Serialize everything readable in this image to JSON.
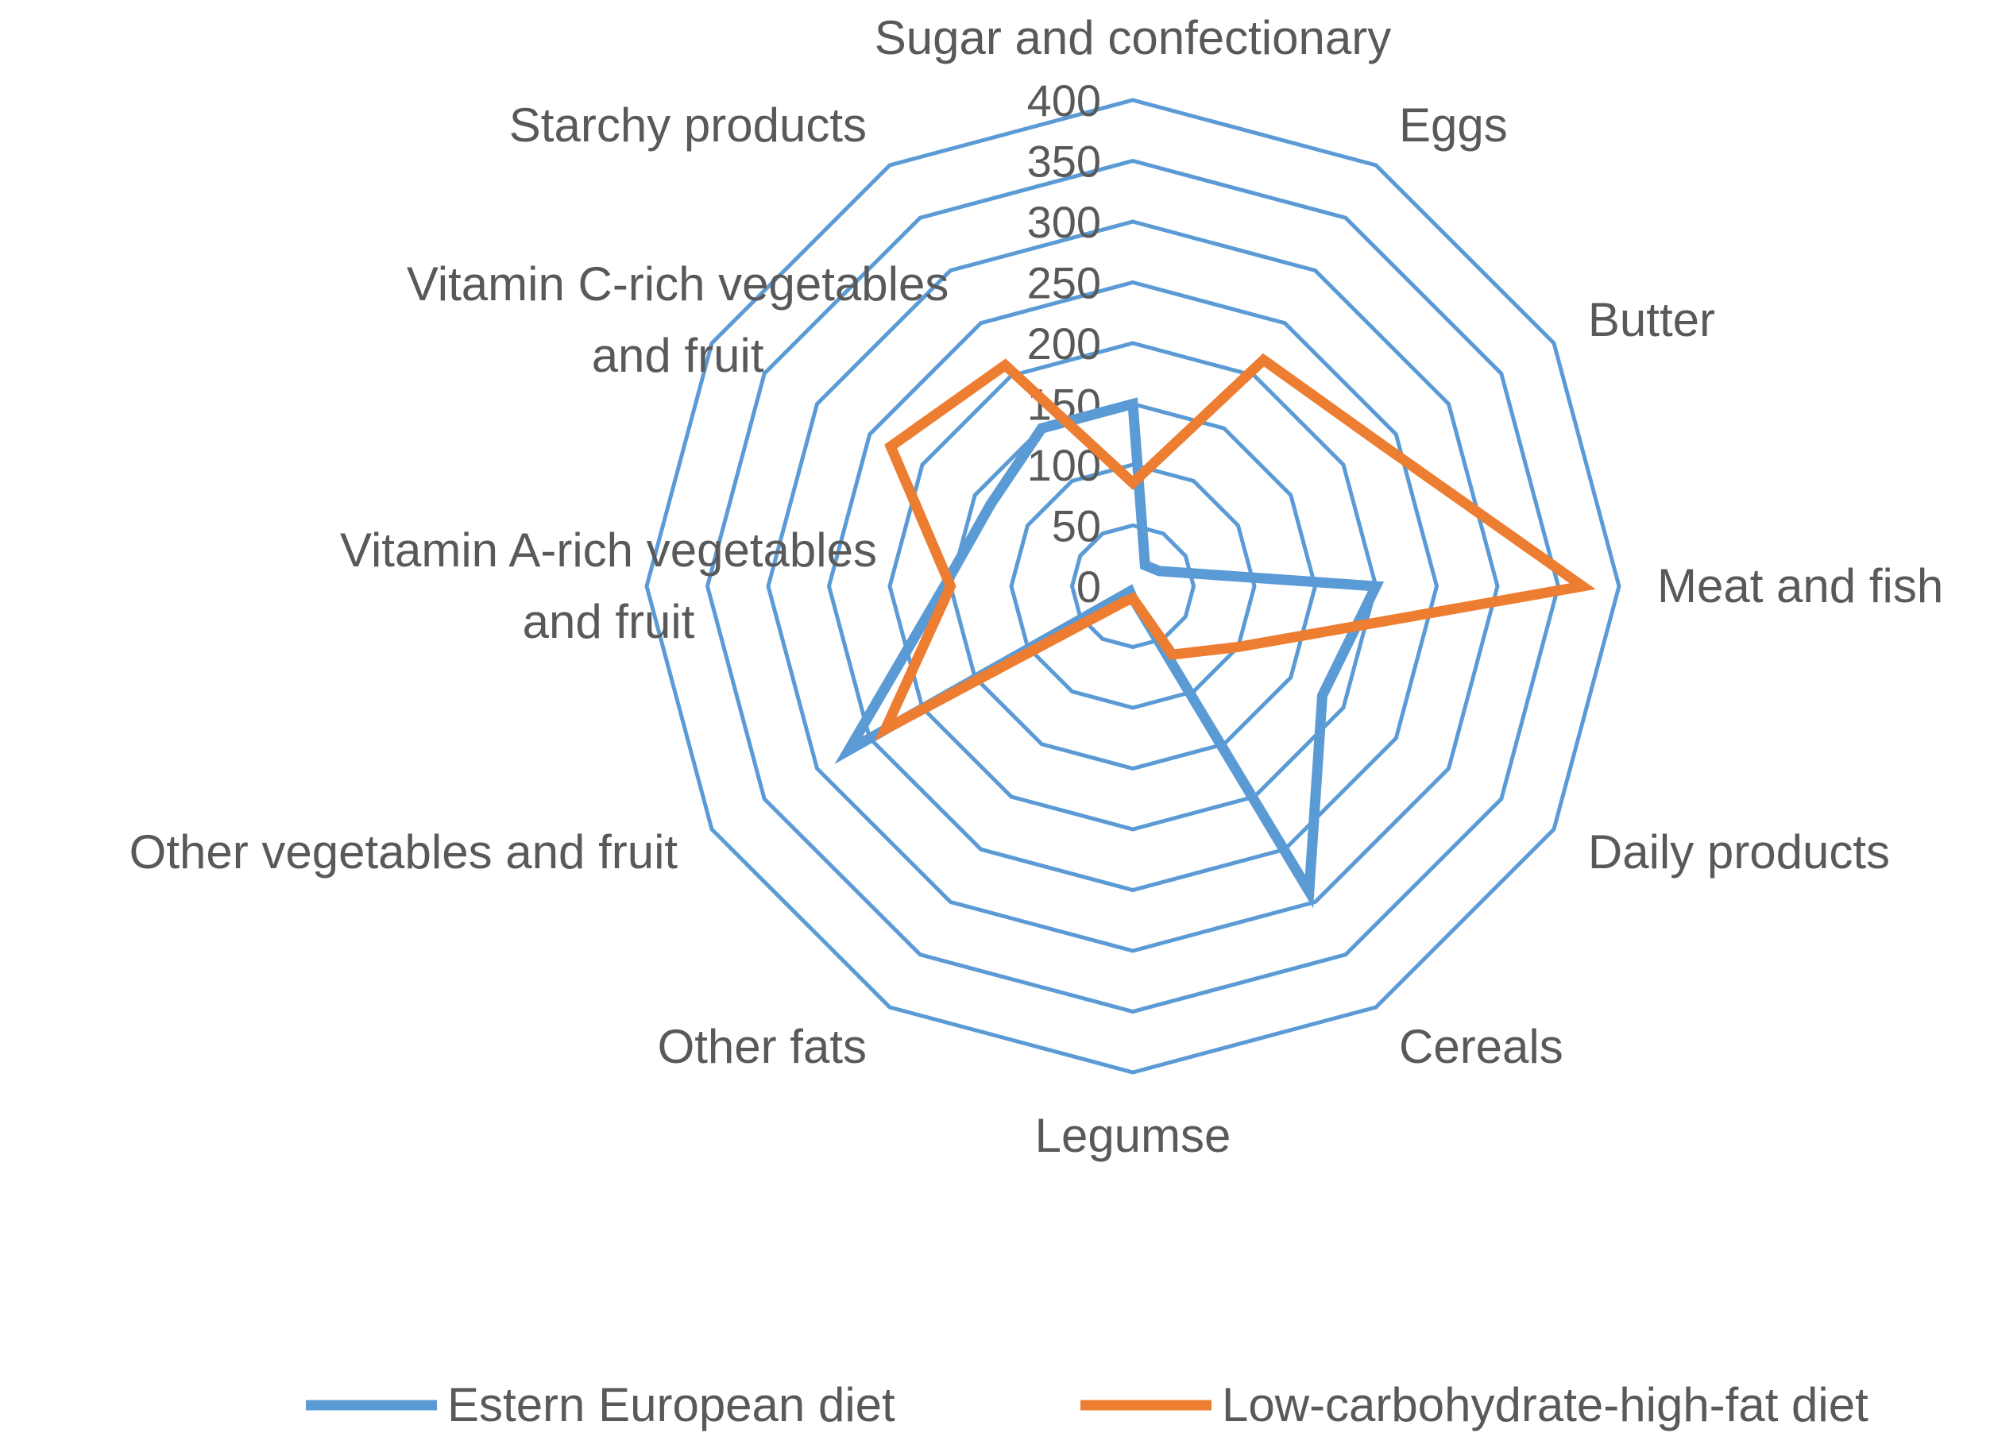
{
  "chart_data": {
    "type": "radar",
    "title": "",
    "categories": [
      "Sugar and confectionary",
      "Eggs",
      "Butter",
      "Meat and fish",
      "Daily products",
      "Cereals",
      "Legumse",
      "Other fats",
      "Other vegetables and fruit",
      "Vitamin A-rich vegetables and fruit",
      "Vitamin C-rich vegetables and fruit",
      "Starchy products"
    ],
    "category_lines": [
      [
        "Sugar and confectionary"
      ],
      [
        "Eggs"
      ],
      [
        "Butter"
      ],
      [
        "Meat and fish"
      ],
      [
        "Daily products"
      ],
      [
        "Cereals"
      ],
      [
        "Legumse"
      ],
      [
        "Other fats"
      ],
      [
        "Other vegetables and fruit"
      ],
      [
        "Vitamin A-rich vegetables",
        "and fruit"
      ],
      [
        "Vitamin C-rich vegetables",
        "and fruit"
      ],
      [
        "Starchy products"
      ]
    ],
    "r_ticks": [
      0,
      50,
      100,
      150,
      200,
      250,
      300,
      350,
      400
    ],
    "r_range": [
      0,
      400
    ],
    "grid": true,
    "legend_position": "bottom",
    "series": [
      {
        "name": "Estern European diet",
        "color": "#5B9BD5",
        "values": [
          150,
          20,
          25,
          200,
          180,
          290,
          10,
          5,
          270,
          155,
          135,
          150
        ]
      },
      {
        "name": "Low-carbohydrate-high-fat diet",
        "color": "#ED7D31",
        "values": [
          85,
          215,
          235,
          370,
          100,
          65,
          10,
          15,
          235,
          150,
          230,
          210
        ]
      }
    ],
    "grid_color": "#5B9BD5"
  }
}
